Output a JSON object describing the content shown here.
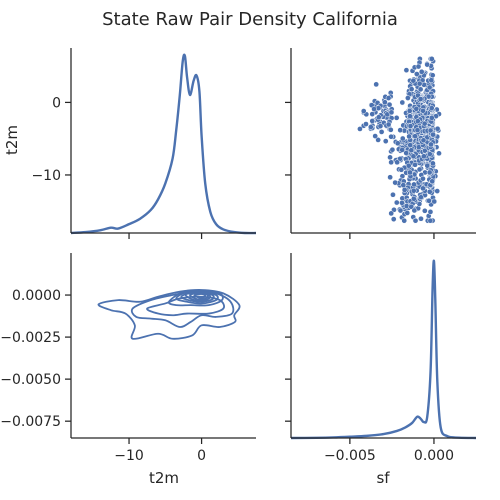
{
  "chart_data": {
    "type": "pairgrid",
    "title": "State Raw Pair Density California",
    "variables": [
      "t2m",
      "sf"
    ],
    "color": "#4c72b0",
    "t2m_axis": {
      "label": "t2m",
      "range": [
        -18.0,
        7.5
      ],
      "ticks": [
        -10,
        0
      ],
      "tick_labels": [
        "−10",
        "0"
      ]
    },
    "sf_axis": {
      "label": "sf",
      "range": [
        -0.0085,
        0.0025
      ],
      "ticks": [
        -0.005,
        0.0
      ],
      "tick_labels": [
        "−0.005",
        "0.000"
      ]
    },
    "y_axis_t2m": {
      "label": "t2m",
      "range": [
        -18.0,
        7.5
      ],
      "ticks": [
        0,
        -10
      ],
      "tick_labels": [
        "0",
        "−10"
      ]
    },
    "y_axis_sf": {
      "label": "",
      "range": [
        -0.0085,
        0.0025
      ],
      "ticks": [
        0.0,
        -0.0025,
        -0.005,
        -0.0075
      ],
      "tick_labels": [
        "0.0000",
        "−0.0025",
        "−0.0050",
        "−0.0075"
      ]
    },
    "diag_t2m_kde": {
      "x": [
        -18,
        -16,
        -14,
        -12.5,
        -11.5,
        -10,
        -8.5,
        -7,
        -6,
        -5,
        -4,
        -3.5,
        -3,
        -2.6,
        -2.3,
        -2.0,
        -1.6,
        -1.1,
        -0.7,
        -0.3,
        0,
        0.5,
        1.2,
        2,
        3,
        4.5,
        6,
        7.5
      ],
      "density": [
        0.0,
        0.005,
        0.015,
        0.03,
        0.025,
        0.05,
        0.08,
        0.13,
        0.19,
        0.28,
        0.42,
        0.58,
        0.78,
        0.97,
        1.0,
        0.88,
        0.78,
        0.86,
        0.89,
        0.8,
        0.55,
        0.28,
        0.12,
        0.05,
        0.02,
        0.005,
        0.0,
        0.0
      ]
    },
    "diag_sf_kde": {
      "x": [
        -0.0085,
        -0.007,
        -0.006,
        -0.005,
        -0.004,
        -0.003,
        -0.0022,
        -0.0017,
        -0.0013,
        -0.001,
        -0.0008,
        -0.0006,
        -0.0004,
        -0.0002,
        -8e-05,
        0.0,
        8e-05,
        0.0002,
        0.0004,
        0.0008,
        0.0015,
        0.0025
      ],
      "density": [
        0.0,
        0.001,
        0.003,
        0.007,
        0.012,
        0.022,
        0.04,
        0.06,
        0.085,
        0.12,
        0.11,
        0.09,
        0.12,
        0.38,
        0.85,
        1.0,
        0.78,
        0.32,
        0.06,
        0.01,
        0.002,
        0.0
      ]
    },
    "scatter_sf_vs_t2m": {
      "x_range": [
        -0.0044,
        0.0003
      ],
      "y_range": [
        -16.3,
        6.0
      ],
      "n_points": 900,
      "note": "dense cloud concentrated near sf≈-0.0014..0.0, t2m≈-16..6"
    },
    "kde_contours_t2m_sf": [
      {
        "level": 1,
        "points": [
          [
            -14.2,
            -0.00055
          ],
          [
            -11.5,
            -0.0003
          ],
          [
            -8.5,
            -0.0004
          ],
          [
            -6,
            -0.0001
          ],
          [
            -3,
            0.0002
          ],
          [
            0,
            0.0003
          ],
          [
            3,
            0.0001
          ],
          [
            5.2,
            -0.0006
          ],
          [
            4.5,
            -0.0012
          ],
          [
            4.6,
            -0.0016
          ],
          [
            2.5,
            -0.0019
          ],
          [
            0,
            -0.0018
          ],
          [
            -1.3,
            -0.0024
          ],
          [
            -4,
            -0.0026
          ],
          [
            -6,
            -0.0023
          ],
          [
            -9.5,
            -0.0026
          ],
          [
            -9.2,
            -0.0018
          ],
          [
            -10.5,
            -0.0011
          ],
          [
            -12.5,
            -0.0009
          ],
          [
            -14.2,
            -0.00055
          ]
        ]
      },
      {
        "level": 2,
        "points": [
          [
            -9.5,
            -0.0008
          ],
          [
            -7,
            -0.0003
          ],
          [
            -4,
            0.0
          ],
          [
            -1,
            0.0002
          ],
          [
            2,
            0.0001
          ],
          [
            4,
            -0.0004
          ],
          [
            4.2,
            -0.0011
          ],
          [
            2,
            -0.0013
          ],
          [
            0,
            -0.0012
          ],
          [
            -1.5,
            -0.0016
          ],
          [
            -3,
            -0.0019
          ],
          [
            -5,
            -0.0015
          ],
          [
            -7,
            -0.0014
          ],
          [
            -9,
            -0.0013
          ],
          [
            -9.5,
            -0.0008
          ]
        ]
      },
      {
        "level": 3,
        "points": [
          [
            -7.5,
            -0.0008
          ],
          [
            -5,
            -0.0005
          ],
          [
            -3,
            -0.0002
          ],
          [
            0,
            -0.0001
          ],
          [
            2.5,
            -0.0003
          ],
          [
            3,
            -0.0008
          ],
          [
            1,
            -0.0011
          ],
          [
            -2,
            -0.0011
          ],
          [
            -4,
            -0.0012
          ],
          [
            -6,
            -0.0011
          ],
          [
            -7.5,
            -0.0008
          ]
        ]
      },
      {
        "level": 4,
        "points": [
          [
            -4.5,
            -0.0004
          ],
          [
            -2.5,
            0.0002
          ],
          [
            0,
            0.00025
          ],
          [
            2.5,
            0.0001
          ],
          [
            2.8,
            -0.0003
          ],
          [
            1,
            -0.0006
          ],
          [
            -1.5,
            -0.0006
          ],
          [
            -3.5,
            -0.0006
          ],
          [
            -4.5,
            -0.0004
          ]
        ]
      },
      {
        "level": 5,
        "points": [
          [
            -3.5,
            -0.0002
          ],
          [
            -2,
            0.0002
          ],
          [
            0,
            0.0002
          ],
          [
            2,
            0.0
          ],
          [
            2,
            -0.0003
          ],
          [
            0,
            -0.0005
          ],
          [
            -2,
            -0.0004
          ],
          [
            -3.5,
            -0.0002
          ]
        ]
      },
      {
        "level": 6,
        "points": [
          [
            -2.8,
            -0.0001
          ],
          [
            -1.5,
            0.00015
          ],
          [
            0,
            0.00015
          ],
          [
            1.5,
            0.0
          ],
          [
            1.5,
            -0.00025
          ],
          [
            0,
            -0.0004
          ],
          [
            -1.8,
            -0.0003
          ],
          [
            -2.8,
            -0.0001
          ]
        ]
      },
      {
        "level": 7,
        "points": [
          [
            -2.2,
            0.0
          ],
          [
            -1,
            0.00012
          ],
          [
            0.5,
            0.0001
          ],
          [
            1.2,
            -0.0001
          ],
          [
            0.5,
            -0.0003
          ],
          [
            -1,
            -0.0003
          ],
          [
            -2.2,
            0.0
          ]
        ]
      },
      {
        "level": 8,
        "points": [
          [
            -1.6,
            0.0
          ],
          [
            -0.5,
            0.0001
          ],
          [
            0.8,
            0.0
          ],
          [
            0.6,
            -0.0002
          ],
          [
            -0.6,
            -0.00025
          ],
          [
            -1.6,
            0.0
          ]
        ]
      },
      {
        "level": 9,
        "points": [
          [
            -1.0,
            -3e-05
          ],
          [
            0,
            6e-05
          ],
          [
            0.5,
            -5e-05
          ],
          [
            0,
            -0.00018
          ],
          [
            -1.0,
            -3e-05
          ]
        ]
      }
    ]
  }
}
